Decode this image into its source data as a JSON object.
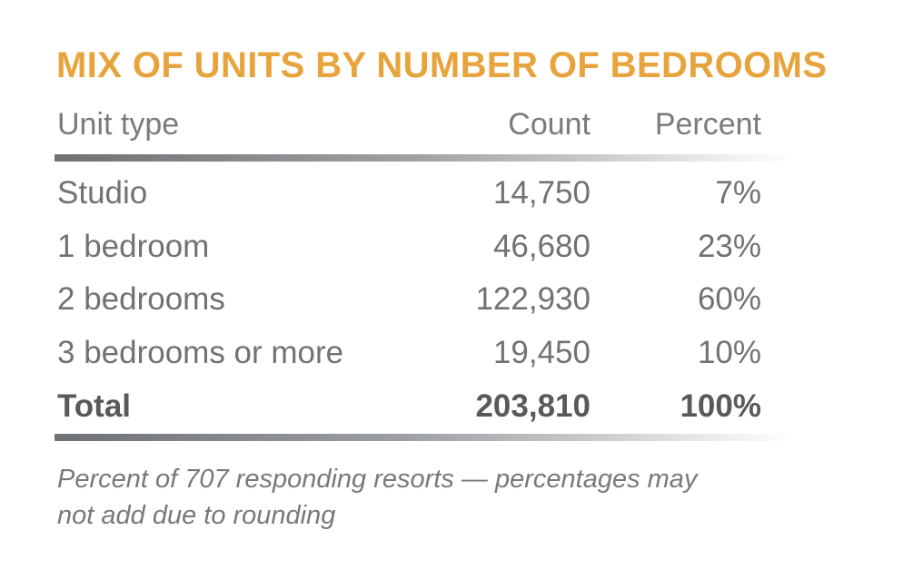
{
  "title": "MIX OF UNITS BY NUMBER OF BEDROOMS",
  "table": {
    "columns": [
      "Unit type",
      "Count",
      "Percent"
    ],
    "rows": [
      {
        "label": "Studio",
        "count": "14,750",
        "percent": "7%"
      },
      {
        "label": "1 bedroom",
        "count": "46,680",
        "percent": "23%"
      },
      {
        "label": "2 bedrooms",
        "count": "122,930",
        "percent": "60%"
      },
      {
        "label": "3 bedrooms or more",
        "count": "19,450",
        "percent": "10%"
      },
      {
        "label": "Total",
        "count": "203,810",
        "percent": "100%"
      }
    ]
  },
  "footnote": {
    "line1": "Percent of 707 responding resorts — percentages may",
    "line2": "not add due to rounding"
  },
  "colors": {
    "title": "#E8A43C",
    "header_text": "#797C7F",
    "row_text": "#6F7276",
    "total_text": "#58595C",
    "footnote_text": "#77797C",
    "rule_dark": "#6F7275",
    "rule_light": "#FFFFFF",
    "background": "#FFFFFF"
  },
  "chart_data": {
    "type": "table",
    "title": "MIX OF UNITS BY NUMBER OF BEDROOMS",
    "columns": [
      "Unit type",
      "Count",
      "Percent"
    ],
    "categories": [
      "Studio",
      "1 bedroom",
      "2 bedrooms",
      "3 bedrooms or more",
      "Total"
    ],
    "series": [
      {
        "name": "Count",
        "values": [
          14750,
          46680,
          122930,
          19450,
          203810
        ]
      },
      {
        "name": "Percent",
        "values": [
          7,
          23,
          60,
          10,
          100
        ]
      }
    ],
    "note": "Percent of 707 responding resorts — percentages may not add due to rounding"
  }
}
